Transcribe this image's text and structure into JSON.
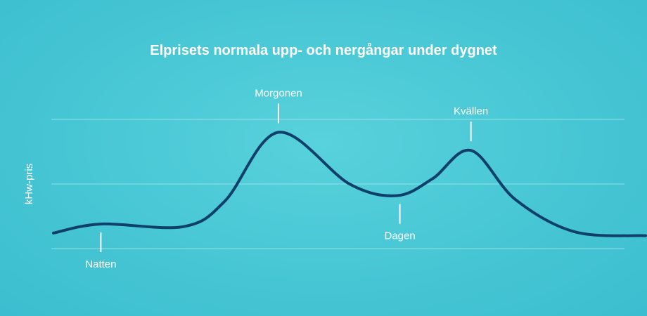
{
  "chart_data": {
    "type": "line",
    "title": "Elprisets normala upp- och nergångar under dygnet",
    "ylabel": "kHw-pris",
    "xlabel": "",
    "grid": true,
    "series": [
      {
        "color": "#0f3f6b",
        "points": [
          {
            "x": 0.0,
            "y": 0.12
          },
          {
            "x": 0.08,
            "y": 0.19
          },
          {
            "x": 0.22,
            "y": 0.17
          },
          {
            "x": 0.29,
            "y": 0.37
          },
          {
            "x": 0.38,
            "y": 0.9
          },
          {
            "x": 0.5,
            "y": 0.5
          },
          {
            "x": 0.58,
            "y": 0.41
          },
          {
            "x": 0.64,
            "y": 0.54
          },
          {
            "x": 0.705,
            "y": 0.76
          },
          {
            "x": 0.78,
            "y": 0.38
          },
          {
            "x": 0.88,
            "y": 0.13
          },
          {
            "x": 1.0,
            "y": 0.1
          }
        ]
      }
    ],
    "annotations": [
      {
        "label": "Natten",
        "x": 0.08,
        "y": 0.19,
        "position": "below"
      },
      {
        "label": "Morgonen",
        "x": 0.38,
        "y": 0.9,
        "position": "above"
      },
      {
        "label": "Dagen",
        "x": 0.585,
        "y": 0.41,
        "position": "below"
      },
      {
        "label": "Kvällen",
        "x": 0.705,
        "y": 0.76,
        "position": "above"
      }
    ]
  }
}
